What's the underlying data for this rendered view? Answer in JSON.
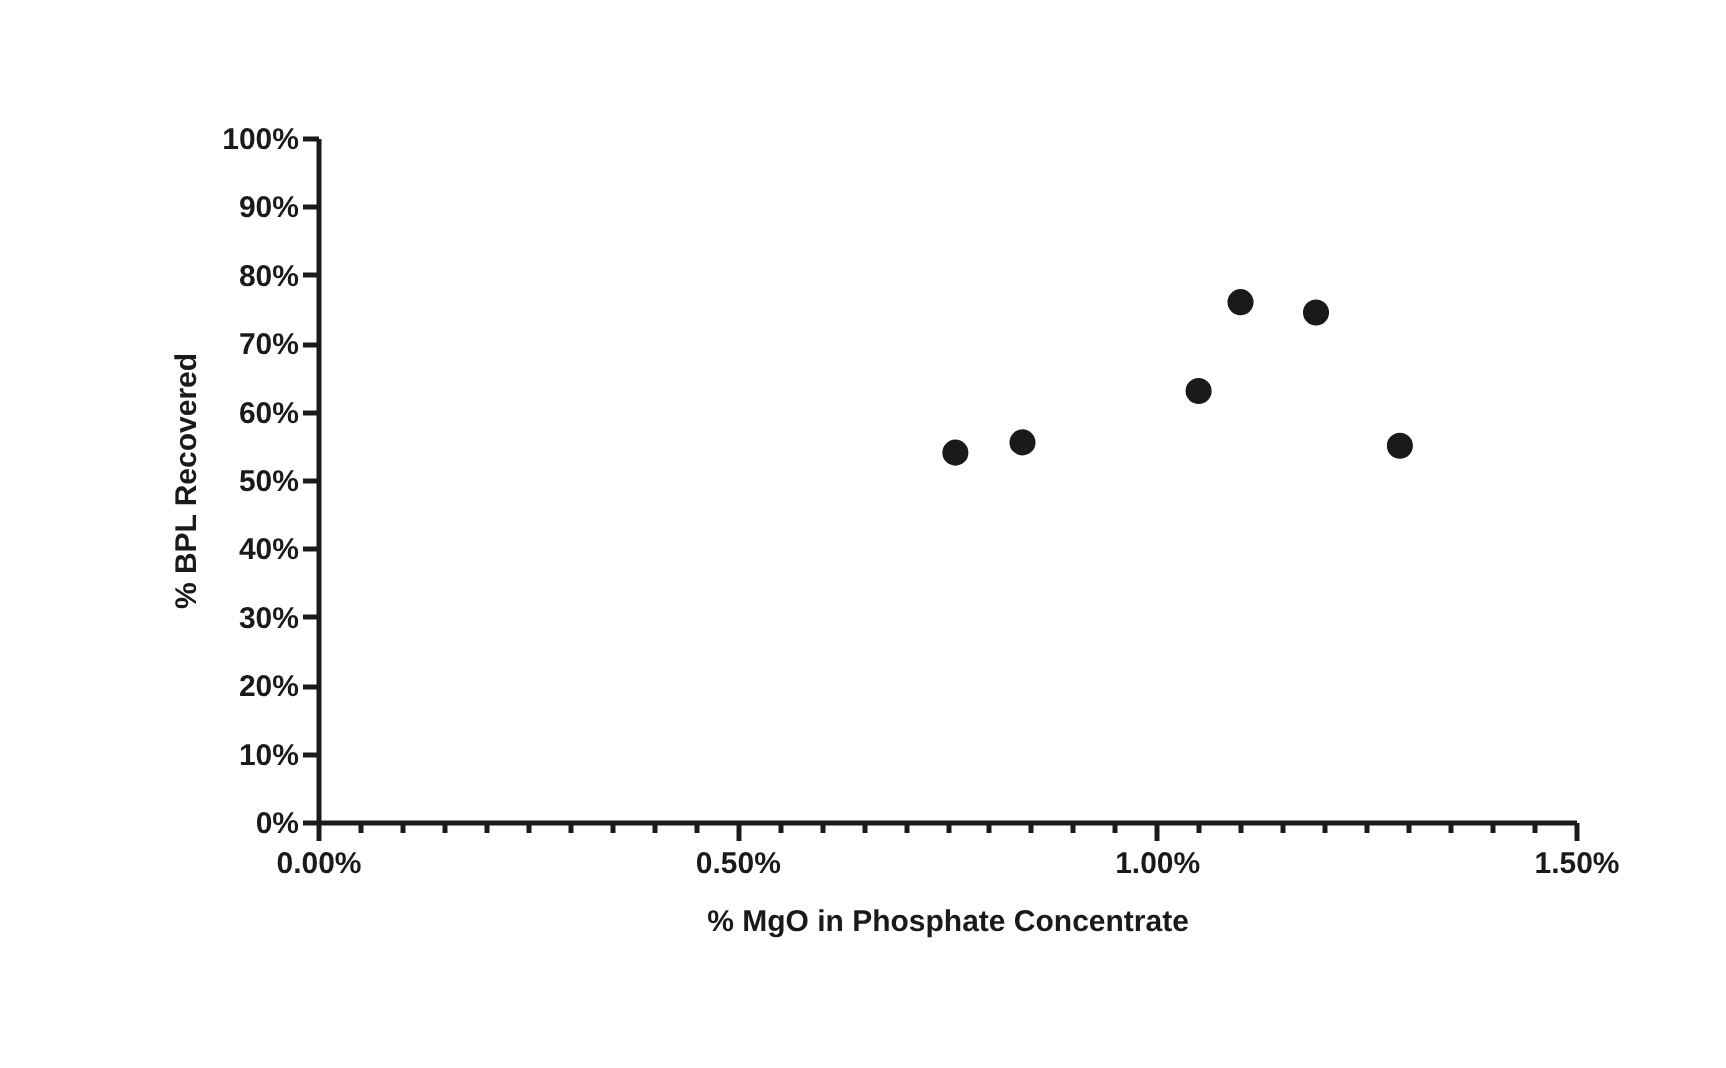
{
  "chart_data": {
    "type": "scatter",
    "xlabel": "% MgO in Phosphate Concentrate",
    "ylabel": "% BPL Recovered",
    "x": [
      0.76,
      0.84,
      1.05,
      1.1,
      1.19,
      1.29
    ],
    "series": [
      {
        "color": "#1a1a1a",
        "values": [
          54,
          55.5,
          63,
          76,
          74.5,
          55
        ]
      }
    ],
    "marker": "circle",
    "xlim": [
      0,
      1.5
    ],
    "xticks": [
      {
        "value": 0,
        "label": "0.00%"
      },
      {
        "value": 0.05,
        "label": null
      },
      {
        "value": 0.1,
        "label": null
      },
      {
        "value": 0.15,
        "label": null
      },
      {
        "value": 0.2,
        "label": null
      },
      {
        "value": 0.25,
        "label": null
      },
      {
        "value": 0.3,
        "label": null
      },
      {
        "value": 0.35,
        "label": null
      },
      {
        "value": 0.4,
        "label": null
      },
      {
        "value": 0.45,
        "label": null
      },
      {
        "value": 0.5,
        "label": "0.50%"
      },
      {
        "value": 0.55,
        "label": null
      },
      {
        "value": 0.6,
        "label": null
      },
      {
        "value": 0.65,
        "label": null
      },
      {
        "value": 0.7,
        "label": null
      },
      {
        "value": 0.75,
        "label": null
      },
      {
        "value": 0.8,
        "label": null
      },
      {
        "value": 0.85,
        "label": null
      },
      {
        "value": 0.9,
        "label": null
      },
      {
        "value": 0.95,
        "label": null
      },
      {
        "value": 1.0,
        "label": "1.00%"
      },
      {
        "value": 1.05,
        "label": null
      },
      {
        "value": 1.1,
        "label": null
      },
      {
        "value": 1.15,
        "label": null
      },
      {
        "value": 1.2,
        "label": null
      },
      {
        "value": 1.25,
        "label": null
      },
      {
        "value": 1.3,
        "label": null
      },
      {
        "value": 1.35,
        "label": null
      },
      {
        "value": 1.4,
        "label": null
      },
      {
        "value": 1.45,
        "label": null
      },
      {
        "value": 1.5,
        "label": "1.50%"
      }
    ],
    "ylim": [
      0,
      100
    ],
    "yticks": [
      {
        "value": 0,
        "label": "0%"
      },
      {
        "value": 10,
        "label": "10%"
      },
      {
        "value": 20,
        "label": "20%"
      },
      {
        "value": 30,
        "label": "30%"
      },
      {
        "value": 40,
        "label": "40%"
      },
      {
        "value": 50,
        "label": "50%"
      },
      {
        "value": 60,
        "label": "60%"
      },
      {
        "value": 70,
        "label": "70%"
      },
      {
        "value": 80,
        "label": "80%"
      },
      {
        "value": 90,
        "label": "90%"
      },
      {
        "value": 100,
        "label": "100%"
      }
    ]
  }
}
